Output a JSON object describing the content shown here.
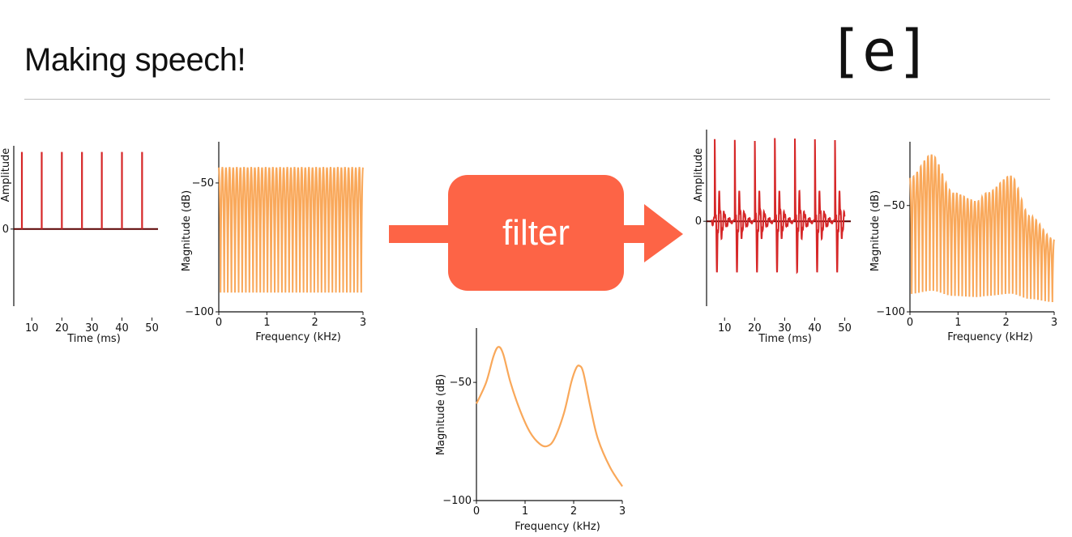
{
  "title": "Making speech!",
  "vowel_label": "[e]",
  "filter_label": "filter",
  "colors": {
    "signal_red": "#d62728",
    "spectrum_orange": "#f9a85a",
    "arrow": "#fd6446"
  },
  "chart_data": [
    {
      "id": "source-waveform",
      "type": "line",
      "xlabel": "Time (ms)",
      "ylabel": "Amplitude",
      "xlim": [
        4,
        52
      ],
      "ylim": [
        -1.0,
        1.08
      ],
      "xticks": [
        10,
        20,
        30,
        40,
        50
      ],
      "yticks": [
        0
      ],
      "pulse_times_ms": [
        6.7,
        13.3,
        20.0,
        26.7,
        33.3,
        40.0,
        46.7
      ],
      "pulse_amplitude": 1.0,
      "baseline": 0
    },
    {
      "id": "source-spectrum",
      "type": "line",
      "xlabel": "Frequency (kHz)",
      "ylabel": "Magnitude (dB)",
      "xlim": [
        0,
        3
      ],
      "ylim": [
        -100,
        -34
      ],
      "xticks": [
        0,
        1,
        2,
        3
      ],
      "yticks": [
        -50,
        -100
      ],
      "harmonic_spacing_khz": 0.15,
      "peak_db": -44,
      "trough_db": -100
    },
    {
      "id": "filter-response",
      "type": "line",
      "xlabel": "Frequency (kHz)",
      "ylabel": "Magnitude (dB)",
      "xlim": [
        0,
        3
      ],
      "ylim": [
        -100,
        -27
      ],
      "xticks": [
        0,
        1,
        2,
        3
      ],
      "yticks": [
        -50,
        -100
      ],
      "x": [
        0,
        0.2,
        0.35,
        0.45,
        0.55,
        0.7,
        0.9,
        1.1,
        1.3,
        1.45,
        1.6,
        1.8,
        1.95,
        2.05,
        2.12,
        2.2,
        2.35,
        2.5,
        2.75,
        3.0
      ],
      "y": [
        -59,
        -50,
        -39,
        -35,
        -38,
        -50,
        -62,
        -71,
        -76,
        -77,
        -74,
        -63,
        -50,
        -44,
        -43,
        -46,
        -61,
        -74,
        -86,
        -94
      ]
    },
    {
      "id": "output-waveform",
      "type": "line",
      "xlabel": "Time (ms)",
      "ylabel": "Amplitude",
      "xlim": [
        4,
        52
      ],
      "ylim": [
        -1.0,
        1.08
      ],
      "xticks": [
        10,
        20,
        30,
        40,
        50
      ],
      "yticks": [
        0
      ],
      "period_ms": 6.67,
      "first_peak_ms": 6.7,
      "end_ms": 50,
      "peak_amplitude": 0.98,
      "trough_amplitude": -0.57
    },
    {
      "id": "output-spectrum",
      "type": "line",
      "xlabel": "Frequency (kHz)",
      "ylabel": "Magnitude (dB)",
      "xlim": [
        0,
        3
      ],
      "ylim": [
        -100,
        -20
      ],
      "xticks": [
        0,
        1,
        2,
        3
      ],
      "yticks": [
        -50,
        -100
      ],
      "harmonic_spacing_khz": 0.15,
      "envelope_x": [
        0,
        0.45,
        0.9,
        1.4,
        1.6,
        2.1,
        2.5,
        3.0
      ],
      "envelope_db": [
        -37,
        -26,
        -44,
        -48,
        -44,
        -36,
        -55,
        -66
      ],
      "trough_db": -100
    }
  ]
}
